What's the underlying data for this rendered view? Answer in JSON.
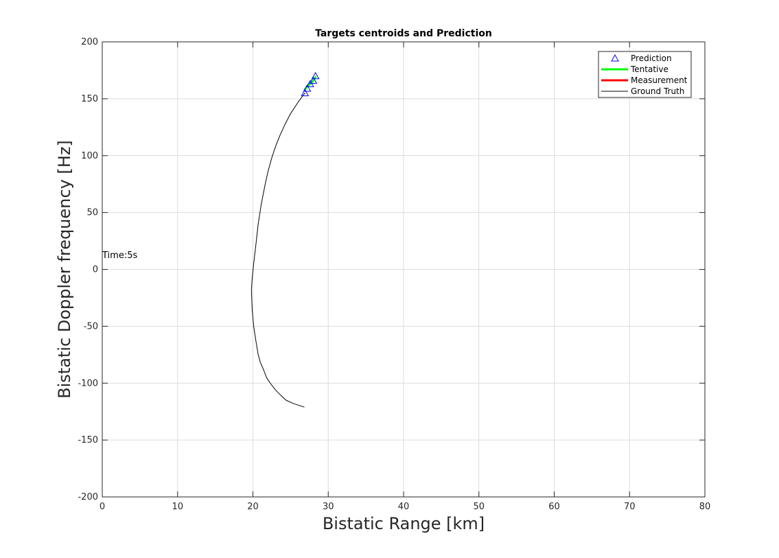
{
  "chart_data": {
    "type": "line",
    "title": "Targets centroids and Prediction",
    "xlabel": "Bistatic Range [km]",
    "ylabel": "Bistatic Doppler frequency [Hz]",
    "xlim": [
      0,
      80
    ],
    "ylim": [
      -200,
      200
    ],
    "xticks": [
      0,
      10,
      20,
      30,
      40,
      50,
      60,
      70,
      80
    ],
    "yticks": [
      -200,
      -150,
      -100,
      -50,
      0,
      50,
      100,
      150,
      200
    ],
    "grid": true,
    "legend_position": "top-right",
    "annotation": {
      "text": "Time:5s",
      "x": 0,
      "y": 10
    },
    "series": [
      {
        "name": "Prediction",
        "style": "triangle-markers",
        "color": "#0000ff",
        "x": [
          26.9,
          27.2,
          27.6,
          28.0,
          28.3
        ],
        "y": [
          155,
          159,
          163,
          166,
          170
        ]
      },
      {
        "name": "Tentative",
        "style": "line",
        "color": "#00ff00",
        "x": [
          26.9,
          27.2,
          27.6,
          28.0,
          28.3
        ],
        "y": [
          158,
          161,
          163,
          166,
          169
        ]
      },
      {
        "name": "Measurement",
        "style": "line",
        "color": "#ff0000",
        "x": [],
        "y": []
      },
      {
        "name": "Ground Truth",
        "style": "line",
        "color": "#000000",
        "x": [
          26.9,
          26.0,
          25.0,
          24.3,
          23.6,
          23.0,
          22.5,
          22.0,
          21.6,
          21.1,
          20.7,
          20.4,
          20.1,
          19.9,
          19.8,
          19.9,
          20.1,
          20.4,
          20.7,
          21.0,
          21.4,
          21.8,
          22.3,
          23.0,
          23.6,
          24.4,
          25.4,
          26.8
        ],
        "y": [
          155,
          147,
          137,
          128,
          118,
          108,
          98,
          86,
          74,
          57,
          40,
          22,
          5,
          -8,
          -18,
          -35,
          -50,
          -63,
          -75,
          -82,
          -88,
          -95,
          -100,
          -106,
          -110,
          -115,
          -118,
          -121
        ]
      }
    ]
  }
}
